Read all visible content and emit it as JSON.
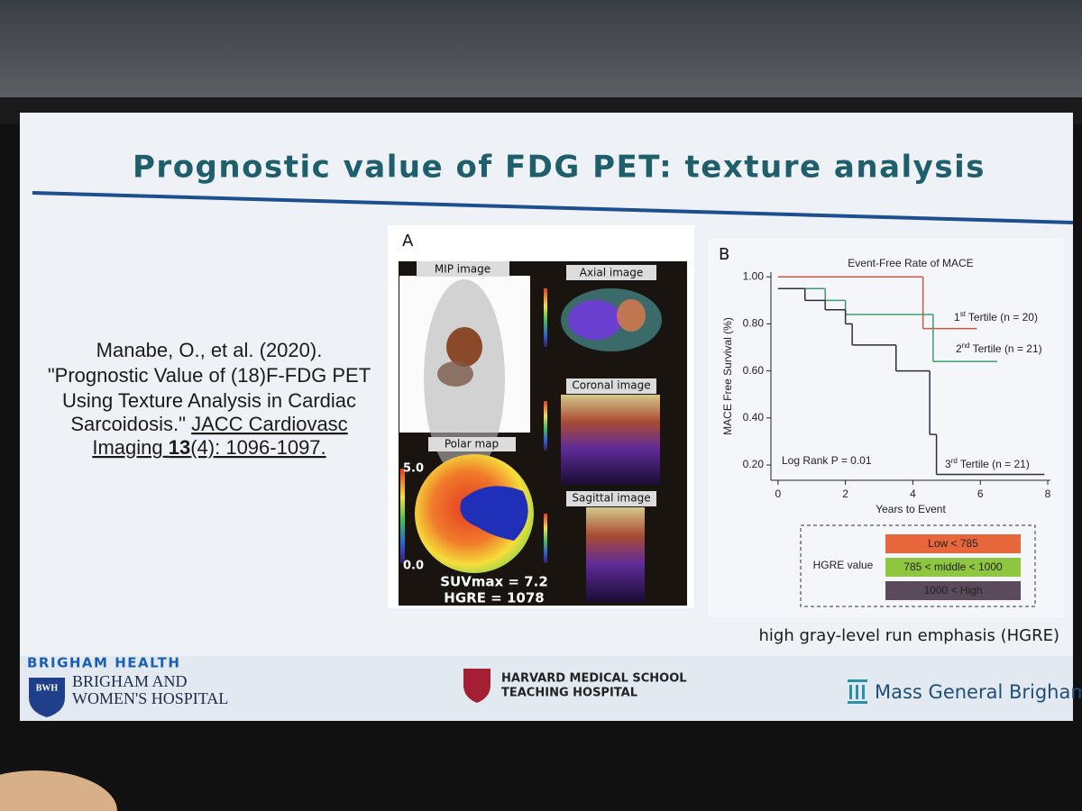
{
  "slide": {
    "title": "Prognostic value of FDG PET: texture analysis",
    "citation": {
      "line1": "Manabe, O., et al. (2020).",
      "line2": "\"Prognostic Value of (18)F-FDG PET",
      "line3": "Using Texture Analysis in Cardiac",
      "line4": "Sarcoidosis.\"",
      "journal": "JACC Cardiovasc",
      "journal2": "Imaging",
      "volume": "13",
      "pages": "(4): 1096-1097."
    },
    "panel_a": {
      "label": "A",
      "mip": "MIP image",
      "axial": "Axial image",
      "coronal": "Coronal image",
      "sagittal": "Sagittal image",
      "polar": "Polar map",
      "scale_max": "5.0",
      "scale_min": "0.0",
      "suvmax": "SUVmax = 7.2",
      "hgre": "HGRE = 1078"
    },
    "note": "high gray-level run emphasis (HGRE)",
    "footer": {
      "group": "BRIGHAM HEALTH",
      "shield": "BWH",
      "hospital1": "BRIGHAM AND",
      "hospital2": "WOMEN'S HOSPITAL",
      "harvard1": "HARVARD MEDICAL SCHOOL",
      "harvard2": "TEACHING HOSPITAL",
      "mgb": "Mass General Brigham"
    }
  },
  "chart_data": {
    "type": "step",
    "panel_label": "B",
    "title": "Event-Free Rate of MACE",
    "x_label": "Years to Event",
    "y_label": "MACE Free Survival (%)",
    "annotation": "Log Rank P = 0.01",
    "xlim": [
      -0.21,
      8.08
    ],
    "ylim": [
      0.135,
      1.02
    ],
    "xticks": [
      0,
      2,
      4,
      6,
      8
    ],
    "yticks": [
      {
        "value": 0.2,
        "label": "0.20"
      },
      {
        "value": 0.4,
        "label": "0.40"
      },
      {
        "value": 0.6,
        "label": "0.60"
      },
      {
        "value": 0.8,
        "label": "0.80"
      },
      {
        "value": 1,
        "label": "1.00"
      }
    ],
    "series": [
      {
        "ordinal": "1",
        "suffix": "st",
        "name": "Tertile (n = 20)",
        "color": "#c9594d",
        "x": [
          0,
          4.3
        ],
        "values": [
          1.0,
          0.78
        ],
        "end": 5.9
      },
      {
        "ordinal": "2",
        "suffix": "nd",
        "name": "Tertile (n = 21)",
        "color": "#3f9d6b",
        "x": [
          0,
          1.4,
          2.0,
          4.6
        ],
        "values": [
          0.95,
          0.9,
          0.84,
          0.64
        ],
        "end": 6.5
      },
      {
        "ordinal": "3",
        "suffix": "rd",
        "name": "Tertile (n = 21)",
        "color": "#2a2f3a",
        "x": [
          0,
          0.8,
          1.4,
          2.0,
          2.2,
          3.5,
          4.5,
          4.7
        ],
        "values": [
          0.95,
          0.9,
          0.86,
          0.8,
          0.71,
          0.6,
          0.33,
          0.16
        ],
        "end": 7.9
      }
    ],
    "hgre_legend": {
      "title": "HGRE value",
      "items": [
        {
          "label": "Low < 785",
          "color": "#e8663c"
        },
        {
          "label": "785 < middle < 1000",
          "color": "#8ec63f"
        },
        {
          "label": "1000 < High",
          "color": "#5b4a5b"
        }
      ]
    }
  }
}
